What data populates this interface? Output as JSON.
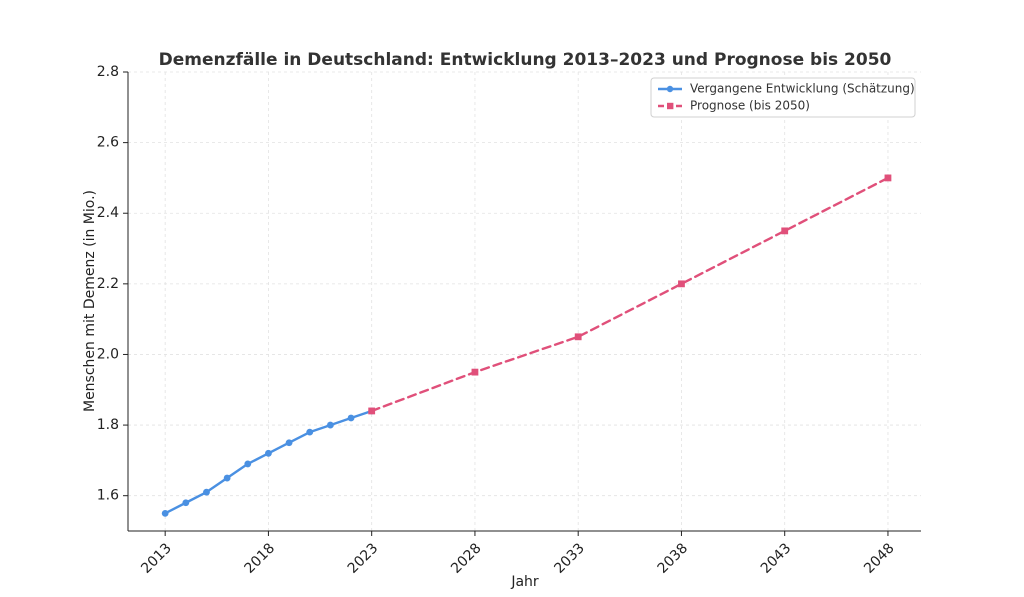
{
  "chart_data": {
    "type": "line",
    "title": "Demenzfälle in Deutschland: Entwicklung 2013–2023 und Prognose bis 2050",
    "xlabel": "Jahr",
    "ylabel": "Menschen mit Demenz (in Mio.)",
    "xlim": [
      2011.2,
      2049.6
    ],
    "ylim": [
      1.5,
      2.8
    ],
    "x_ticks": [
      2013,
      2018,
      2023,
      2028,
      2033,
      2038,
      2043,
      2048
    ],
    "y_ticks": [
      1.6,
      1.8,
      2.0,
      2.2,
      2.4,
      2.6,
      2.8
    ],
    "y_tick_labels": [
      "1.6",
      "1.8",
      "2.0",
      "2.2",
      "2.4",
      "2.6",
      "2.8"
    ],
    "grid": true,
    "legend_position": "top-right",
    "series": [
      {
        "name": "Vergangene Entwicklung (Schätzung)",
        "color": "#4a90e2",
        "marker": "circle",
        "line_style": "solid",
        "x": [
          2013,
          2014,
          2015,
          2016,
          2017,
          2018,
          2019,
          2020,
          2021,
          2022,
          2023
        ],
        "values": [
          1.55,
          1.58,
          1.61,
          1.65,
          1.69,
          1.72,
          1.75,
          1.78,
          1.8,
          1.82,
          1.84
        ]
      },
      {
        "name": "Prognose (bis 2050)",
        "color": "#e0507a",
        "marker": "square",
        "line_style": "dashed",
        "x": [
          2023,
          2028,
          2033,
          2038,
          2043,
          2048
        ],
        "values": [
          1.84,
          1.95,
          2.05,
          2.2,
          2.35,
          2.5
        ]
      }
    ]
  }
}
